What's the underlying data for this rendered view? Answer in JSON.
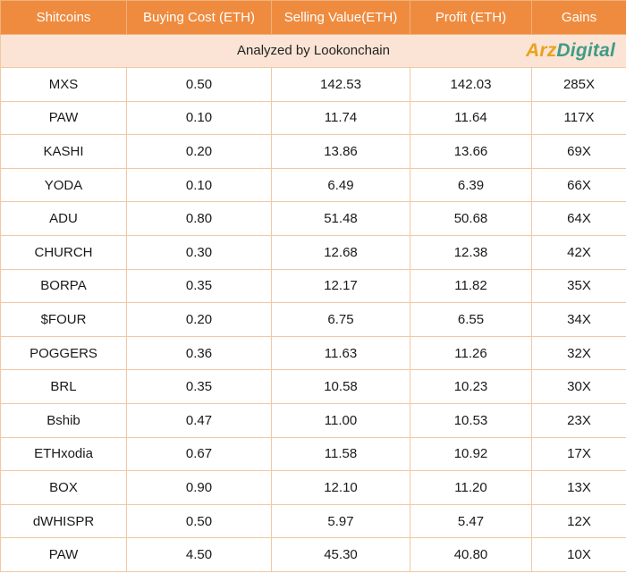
{
  "table": {
    "headers": [
      "Shitcoins",
      "Buying Cost (ETH)",
      "Selling Value(ETH)",
      "Profit (ETH)",
      "Gains"
    ],
    "subtitle": "Analyzed by Lookonchain",
    "logo": {
      "part1": "Arz",
      "part2": "Digital",
      "color1": "#e9a21f",
      "color2": "#3f9b88"
    },
    "header_color": "#ef8b3f",
    "subtitle_bg": "#fbe4d5",
    "rows": [
      [
        "MXS",
        "0.50",
        "142.53",
        "142.03",
        "285X"
      ],
      [
        "PAW",
        "0.10",
        "11.74",
        "11.64",
        "117X"
      ],
      [
        "KASHI",
        "0.20",
        "13.86",
        "13.66",
        "69X"
      ],
      [
        "YODA",
        "0.10",
        "6.49",
        "6.39",
        "66X"
      ],
      [
        "ADU",
        "0.80",
        "51.48",
        "50.68",
        "64X"
      ],
      [
        "CHURCH",
        "0.30",
        "12.68",
        "12.38",
        "42X"
      ],
      [
        "BORPA",
        "0.35",
        "12.17",
        "11.82",
        "35X"
      ],
      [
        "$FOUR",
        "0.20",
        "6.75",
        "6.55",
        "34X"
      ],
      [
        "POGGERS",
        "0.36",
        "11.63",
        "11.26",
        "32X"
      ],
      [
        "BRL",
        "0.35",
        "10.58",
        "10.23",
        "30X"
      ],
      [
        "Bshib",
        "0.47",
        "11.00",
        "10.53",
        "23X"
      ],
      [
        "ETHxodia",
        "0.67",
        "11.58",
        "10.92",
        "17X"
      ],
      [
        "BOX",
        "0.90",
        "12.10",
        "11.20",
        "13X"
      ],
      [
        "dWHISPR",
        "0.50",
        "5.97",
        "5.47",
        "12X"
      ],
      [
        "PAW",
        "4.50",
        "45.30",
        "40.80",
        "10X"
      ]
    ]
  }
}
